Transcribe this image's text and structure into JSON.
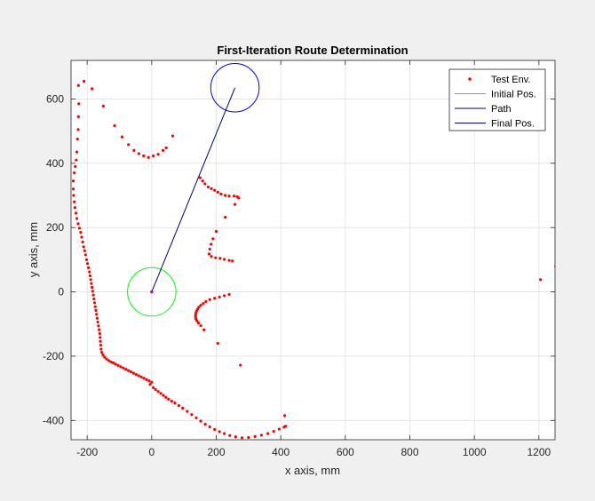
{
  "figure": {
    "background": "#f0f0f0",
    "plot_background": "#ffffff"
  },
  "chart_data": {
    "type": "scatter",
    "title": "First-Iteration Route Determination",
    "xlabel": "x axis, mm",
    "ylabel": "y axis, mm",
    "xlim": [
      -250,
      1250
    ],
    "ylim": [
      -460,
      720
    ],
    "xticks": [
      -200,
      0,
      200,
      400,
      600,
      800,
      1000,
      1200
    ],
    "yticks": [
      -400,
      -200,
      0,
      200,
      400,
      600
    ],
    "grid": true,
    "legend_position": "top-right",
    "legend": [
      {
        "label": "Test Env.",
        "color": "#ff0000",
        "marker": "point"
      },
      {
        "label": "Initial Pos.",
        "color": "#00ff00",
        "marker": "line"
      },
      {
        "label": "Path",
        "color": "#00007f",
        "marker": "line"
      },
      {
        "label": "Final Pos.",
        "color": "#0000ff",
        "marker": "line"
      }
    ],
    "test_env": [
      [
        -227,
        642
      ],
      [
        -210,
        655
      ],
      [
        -185,
        632
      ],
      [
        -150,
        578
      ],
      [
        -115,
        517
      ],
      [
        -92,
        482
      ],
      [
        -72,
        458
      ],
      [
        -55,
        440
      ],
      [
        -40,
        430
      ],
      [
        -25,
        423
      ],
      [
        -10,
        418
      ],
      [
        5,
        423
      ],
      [
        20,
        428
      ],
      [
        35,
        440
      ],
      [
        45,
        448
      ],
      [
        65,
        485
      ],
      [
        -243,
        345
      ],
      [
        -240,
        370
      ],
      [
        -237,
        390
      ],
      [
        -234,
        410
      ],
      [
        -232,
        435
      ],
      [
        -230,
        475
      ],
      [
        -228,
        505
      ],
      [
        -227,
        545
      ],
      [
        -226,
        585
      ],
      [
        -243,
        320
      ],
      [
        -242,
        300
      ],
      [
        -240,
        280
      ],
      [
        -238,
        262
      ],
      [
        -235,
        245
      ],
      [
        -232,
        228
      ],
      [
        -228,
        212
      ],
      [
        -224,
        198
      ],
      [
        -220,
        185
      ],
      [
        -217,
        170
      ],
      [
        -214,
        155
      ],
      [
        -211,
        140
      ],
      [
        -208,
        128
      ],
      [
        -205,
        115
      ],
      [
        -202,
        100
      ],
      [
        -199,
        88
      ],
      [
        -196,
        75
      ],
      [
        -193,
        62
      ],
      [
        -191,
        50
      ],
      [
        -189,
        38
      ],
      [
        -187,
        26
      ],
      [
        -185,
        14
      ],
      [
        -183,
        2
      ],
      [
        -181,
        -10
      ],
      [
        -179,
        -22
      ],
      [
        -177,
        -34
      ],
      [
        -175,
        -46
      ],
      [
        -173,
        -58
      ],
      [
        -171,
        -70
      ],
      [
        -169,
        -82
      ],
      [
        -167,
        -94
      ],
      [
        -165,
        -106
      ],
      [
        -163,
        -118
      ],
      [
        -161,
        -130
      ],
      [
        -160,
        -142
      ],
      [
        -159,
        -154
      ],
      [
        -158,
        -166
      ],
      [
        -157,
        -178
      ],
      [
        -155,
        -188
      ],
      [
        -151,
        -196
      ],
      [
        -146,
        -203
      ],
      [
        -140,
        -209
      ],
      [
        -133,
        -214
      ],
      [
        -126,
        -218
      ],
      [
        -119,
        -221
      ],
      [
        -112,
        -225
      ],
      [
        -104,
        -229
      ],
      [
        -96,
        -233
      ],
      [
        -88,
        -237
      ],
      [
        -80,
        -241
      ],
      [
        -72,
        -245
      ],
      [
        -64,
        -249
      ],
      [
        -56,
        -253
      ],
      [
        -48,
        -257
      ],
      [
        -40,
        -261
      ],
      [
        -32,
        -265
      ],
      [
        -24,
        -269
      ],
      [
        -16,
        -273
      ],
      [
        -8,
        -277
      ],
      [
        0,
        -281
      ],
      [
        -5,
        -288
      ],
      [
        5,
        -298
      ],
      [
        12,
        -304
      ],
      [
        20,
        -310
      ],
      [
        28,
        -316
      ],
      [
        36,
        -322
      ],
      [
        44,
        -328
      ],
      [
        52,
        -334
      ],
      [
        62,
        -340
      ],
      [
        72,
        -346
      ],
      [
        84,
        -354
      ],
      [
        96,
        -362
      ],
      [
        110,
        -372
      ],
      [
        124,
        -382
      ],
      [
        138,
        -392
      ],
      [
        152,
        -402
      ],
      [
        166,
        -412
      ],
      [
        180,
        -420
      ],
      [
        195,
        -428
      ],
      [
        210,
        -435
      ],
      [
        225,
        -441
      ],
      [
        242,
        -447
      ],
      [
        260,
        -451
      ],
      [
        280,
        -454
      ],
      [
        300,
        -453
      ],
      [
        320,
        -450
      ],
      [
        340,
        -446
      ],
      [
        360,
        -441
      ],
      [
        378,
        -434
      ],
      [
        395,
        -427
      ],
      [
        410,
        -421
      ],
      [
        415,
        -418
      ],
      [
        412,
        -385
      ],
      [
        150,
        355
      ],
      [
        158,
        345
      ],
      [
        165,
        336
      ],
      [
        175,
        326
      ],
      [
        185,
        321
      ],
      [
        195,
        316
      ],
      [
        205,
        310
      ],
      [
        215,
        304
      ],
      [
        228,
        300
      ],
      [
        240,
        298
      ],
      [
        255,
        298
      ],
      [
        265,
        296
      ],
      [
        270,
        292
      ],
      [
        258,
        272
      ],
      [
        228,
        232
      ],
      [
        200,
        188
      ],
      [
        190,
        165
      ],
      [
        184,
        148
      ],
      [
        180,
        133
      ],
      [
        178,
        118
      ],
      [
        185,
        110
      ],
      [
        198,
        106
      ],
      [
        212,
        104
      ],
      [
        225,
        101
      ],
      [
        240,
        98
      ],
      [
        250,
        96
      ],
      [
        240,
        -8
      ],
      [
        225,
        -12
      ],
      [
        210,
        -16
      ],
      [
        195,
        -20
      ],
      [
        180,
        -24
      ],
      [
        168,
        -30
      ],
      [
        160,
        -36
      ],
      [
        152,
        -42
      ],
      [
        146,
        -48
      ],
      [
        142,
        -54
      ],
      [
        139,
        -60
      ],
      [
        137,
        -66
      ],
      [
        136,
        -72
      ],
      [
        136,
        -78
      ],
      [
        137,
        -84
      ],
      [
        140,
        -90
      ],
      [
        145,
        -97
      ],
      [
        152,
        -105
      ],
      [
        162,
        -118
      ],
      [
        205,
        -160
      ],
      [
        275,
        -228
      ],
      [
        1205,
        38
      ],
      [
        1252,
        80
      ]
    ],
    "path": {
      "x": [
        0,
        258
      ],
      "y": [
        0,
        635
      ]
    },
    "initial_pos": {
      "center": [
        0,
        0
      ],
      "radius_mm": 75
    },
    "final_pos": {
      "center": [
        258,
        635
      ],
      "radius_mm": 75
    }
  }
}
